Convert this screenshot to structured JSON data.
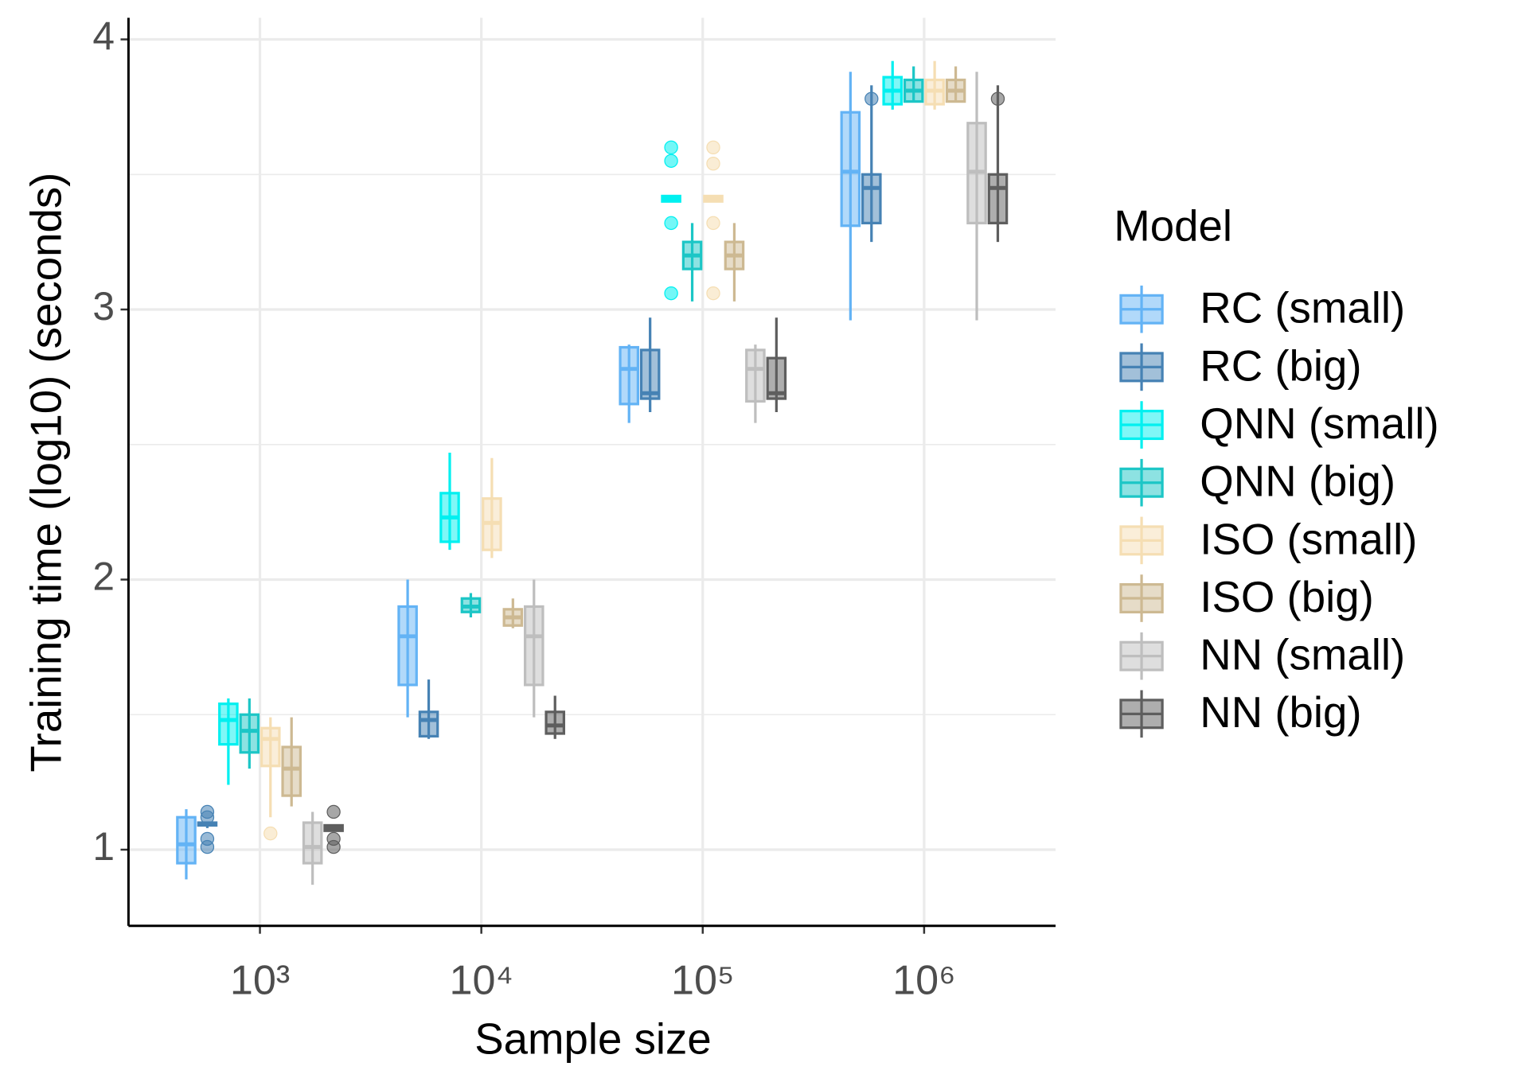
{
  "chart_data": {
    "type": "box",
    "x_label": "Sample size",
    "y_label": "Training time (log10) (seconds)",
    "legend_title": "Model",
    "legend": "right",
    "grid": true,
    "categories": [
      "10³",
      "10⁴",
      "10⁵",
      "10⁶"
    ],
    "ylim": [
      0.718,
      4.08
    ],
    "yticks": [
      1,
      2,
      3,
      4
    ],
    "yminor_ticks": [
      1.5,
      2.5,
      3.5
    ],
    "series": [
      {
        "name": "RC (small)",
        "color": "#63b3f5",
        "low": [
          0.89,
          1.49,
          2.58,
          2.96
        ],
        "q1": [
          0.95,
          1.61,
          2.65,
          3.31
        ],
        "median": [
          1.02,
          1.79,
          2.78,
          3.51
        ],
        "q3": [
          1.12,
          1.9,
          2.86,
          3.73
        ],
        "high": [
          1.15,
          2.0,
          2.87,
          3.88
        ],
        "outliers": [
          [],
          [],
          [],
          []
        ]
      },
      {
        "name": "RC (big)",
        "color": "#4682b4",
        "low": [
          1.08,
          1.41,
          2.62,
          3.25
        ],
        "q1": [
          1.09,
          1.42,
          2.67,
          3.32
        ],
        "median": [
          1.095,
          1.48,
          2.69,
          3.45
        ],
        "q3": [
          1.1,
          1.51,
          2.85,
          3.5
        ],
        "high": [
          1.1,
          1.63,
          2.97,
          3.83
        ],
        "outliers": [
          [
            1.14,
            1.12,
            1.04,
            1.01
          ],
          [],
          [],
          [
            3.78
          ]
        ]
      },
      {
        "name": "QNN (small)",
        "color": "#00f0f0",
        "low": [
          1.24,
          2.11,
          3.4,
          3.74
        ],
        "q1": [
          1.39,
          2.14,
          3.4,
          3.76
        ],
        "median": [
          1.48,
          2.23,
          3.41,
          3.81
        ],
        "q3": [
          1.54,
          2.32,
          3.42,
          3.86
        ],
        "high": [
          1.56,
          2.47,
          3.42,
          3.92
        ],
        "outliers": [
          [],
          [],
          [
            3.6,
            3.55,
            3.32,
            3.06
          ],
          []
        ]
      },
      {
        "name": "QNN (big)",
        "color": "#1cc6c6",
        "low": [
          1.3,
          1.86,
          3.03,
          3.77
        ],
        "q1": [
          1.36,
          1.88,
          3.15,
          3.77
        ],
        "median": [
          1.44,
          1.9,
          3.2,
          3.81
        ],
        "q3": [
          1.5,
          1.93,
          3.25,
          3.85
        ],
        "high": [
          1.56,
          1.95,
          3.32,
          3.9
        ],
        "outliers": [
          [],
          [],
          [],
          []
        ]
      },
      {
        "name": "ISO (small)",
        "color": "#f5deb3",
        "low": [
          1.12,
          2.08,
          3.4,
          3.74
        ],
        "q1": [
          1.31,
          2.11,
          3.4,
          3.76
        ],
        "median": [
          1.41,
          2.21,
          3.41,
          3.81
        ],
        "q3": [
          1.45,
          2.3,
          3.42,
          3.85
        ],
        "high": [
          1.49,
          2.45,
          3.42,
          3.92
        ],
        "outliers": [
          [
            1.06
          ],
          [],
          [
            3.6,
            3.54,
            3.32,
            3.06
          ],
          []
        ]
      },
      {
        "name": "ISO (big)",
        "color": "#cdb992",
        "low": [
          1.16,
          1.82,
          3.03,
          3.77
        ],
        "q1": [
          1.2,
          1.83,
          3.15,
          3.77
        ],
        "median": [
          1.3,
          1.86,
          3.2,
          3.81
        ],
        "q3": [
          1.38,
          1.89,
          3.25,
          3.85
        ],
        "high": [
          1.49,
          1.93,
          3.32,
          3.9
        ],
        "outliers": [
          [],
          [],
          [],
          []
        ]
      },
      {
        "name": "NN (small)",
        "color": "#bebebe",
        "low": [
          0.87,
          1.49,
          2.58,
          2.96
        ],
        "q1": [
          0.95,
          1.61,
          2.66,
          3.32
        ],
        "median": [
          1.01,
          1.79,
          2.78,
          3.51
        ],
        "q3": [
          1.1,
          1.9,
          2.85,
          3.69
        ],
        "high": [
          1.14,
          2.0,
          2.87,
          3.88
        ],
        "outliers": [
          [],
          [],
          [],
          []
        ]
      },
      {
        "name": "NN (big)",
        "color": "#5e5e5e",
        "low": [
          1.07,
          1.41,
          2.62,
          3.25
        ],
        "q1": [
          1.07,
          1.43,
          2.67,
          3.32
        ],
        "median": [
          1.08,
          1.46,
          2.69,
          3.45
        ],
        "q3": [
          1.09,
          1.51,
          2.82,
          3.5
        ],
        "high": [
          1.09,
          1.57,
          2.97,
          3.83
        ],
        "outliers": [
          [
            1.14,
            1.04,
            1.01
          ],
          [],
          [],
          [
            3.78
          ]
        ]
      }
    ]
  }
}
